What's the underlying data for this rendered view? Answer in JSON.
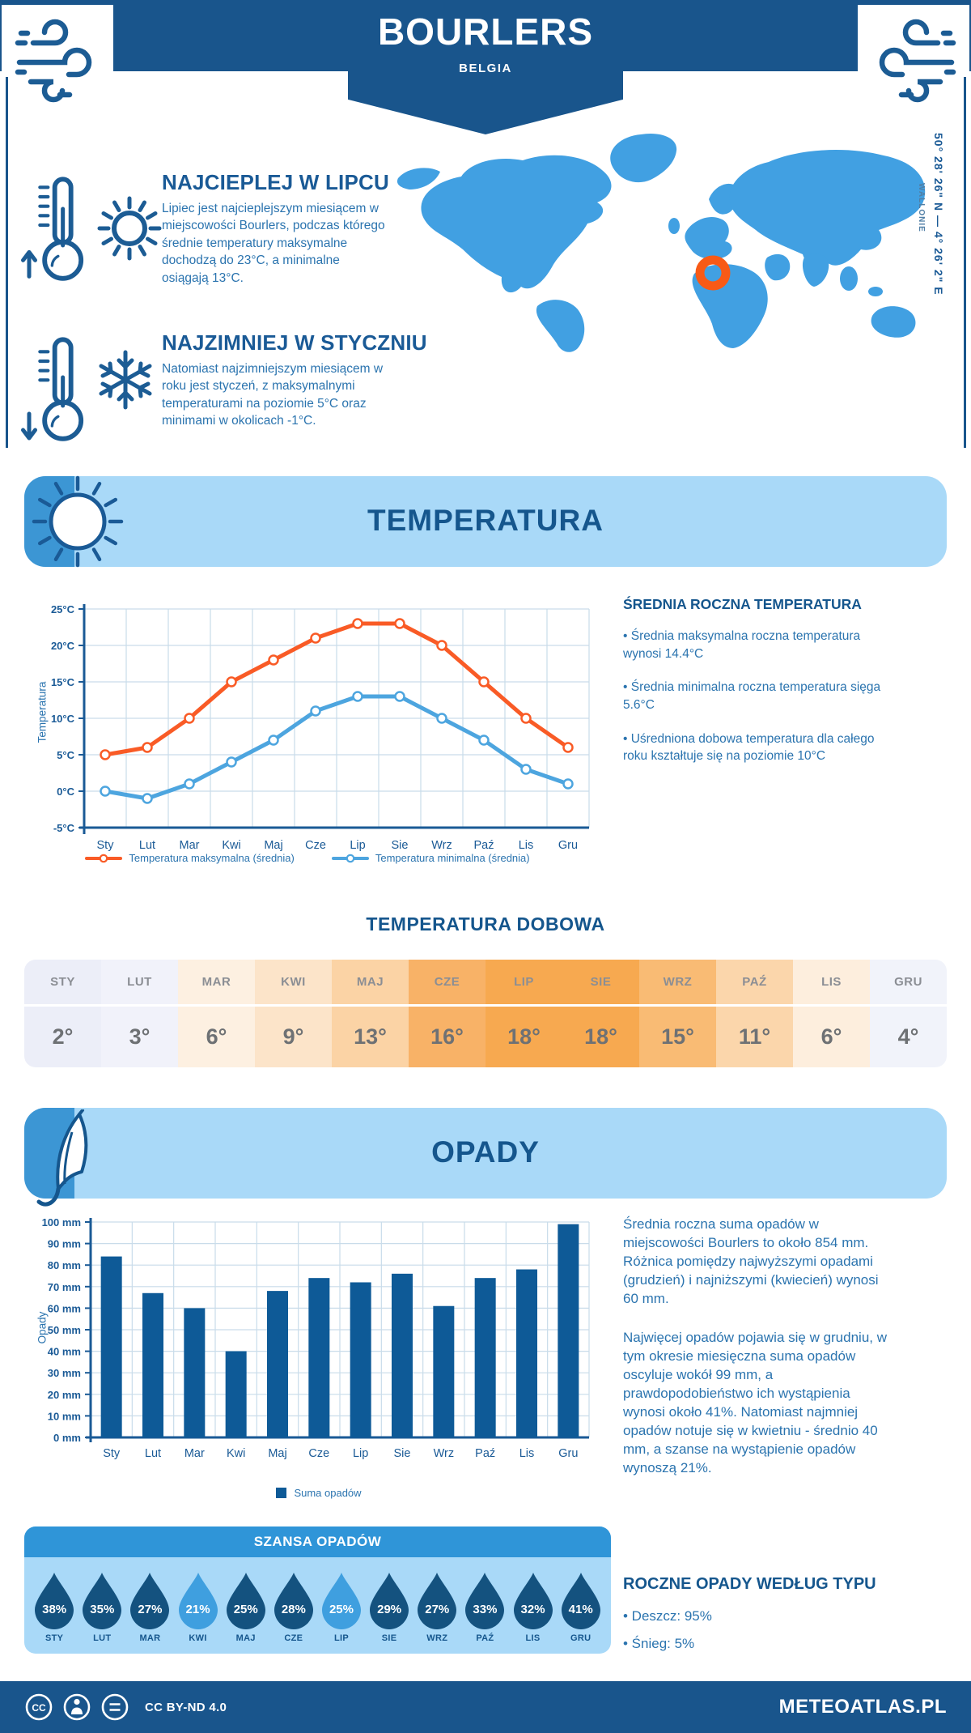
{
  "header": {
    "title": "BOURLERS",
    "subtitle": "BELGIA"
  },
  "warm": {
    "heading": "NAJCIEPLEJ W LIPCU",
    "text": "Lipiec jest najcieplejszym miesiącem w miejscowości Bourlers, podczas którego średnie temperatury maksymalne dochodzą do 23°C, a minimalne osiągają 13°C."
  },
  "cold": {
    "heading": "NAJZIMNIEJ W STYCZNIU",
    "text": "Natomiast najzimniejszym miesiącem w roku jest styczeń, z maksymalnymi temperaturami na poziomie 5°C oraz minimami w okolicach -1°C."
  },
  "map": {
    "coordinates": "50° 28' 26\" N — 4° 26' 2\" E",
    "region": "WALLONIE",
    "land_color": "#41A0E2",
    "marker_color": "#F85A16"
  },
  "temperature": {
    "banner": "TEMPERATURA",
    "summary_heading": "ŚREDNIA ROCZNA TEMPERATURA",
    "bullet1": "• Średnia maksymalna roczna temperatura wynosi 14.4°C",
    "bullet2": "• Średnia minimalna roczna temperatura sięga 5.6°C",
    "bullet3": "• Uśredniona dobowa temperatura dla całego roku kształtuje się na poziomie 10°C",
    "daily_heading": "TEMPERATURA DOBOWA"
  },
  "daily_table": {
    "months": [
      "STY",
      "LUT",
      "MAR",
      "KWI",
      "MAJ",
      "CZE",
      "LIP",
      "SIE",
      "WRZ",
      "PAŹ",
      "LIS",
      "GRU"
    ],
    "values": [
      "2°",
      "3°",
      "6°",
      "9°",
      "13°",
      "16°",
      "18°",
      "18°",
      "15°",
      "11°",
      "6°",
      "4°"
    ],
    "colors": [
      "#ECEEF8",
      "#F1F2FA",
      "#FDF0E1",
      "#FCE4C9",
      "#FBD3A5",
      "#F8B267",
      "#F7A950",
      "#F7A950",
      "#F9BB74",
      "#FBD6AB",
      "#FDEEDD",
      "#F1F3FA"
    ]
  },
  "precipitation": {
    "banner": "OPADY",
    "para1": "Średnia roczna suma opadów w miejscowości Bourlers to około 854 mm. Różnica pomiędzy najwyższymi opadami (grudzień) i najniższymi (kwiecień) wynosi 60 mm.",
    "para2": "Najwięcej opadów pojawia się w grudniu, w tym okresie miesięczna suma opadów oscyluje wokół 99 mm, a prawdopodobieństwo ich wystąpienia wynosi około 41%. Natomiast najmniej opadów notuje się w kwietniu - średnio 40 mm, a szanse na wystąpienie opadów wynoszą 21%.",
    "chance_heading": "SZANSA OPADÓW",
    "chance": [
      {
        "month": "STY",
        "pct": "38%",
        "color": "#14527F"
      },
      {
        "month": "LUT",
        "pct": "35%",
        "color": "#14527F"
      },
      {
        "month": "MAR",
        "pct": "27%",
        "color": "#14527F"
      },
      {
        "month": "KWI",
        "pct": "21%",
        "color": "#3F9FDF"
      },
      {
        "month": "MAJ",
        "pct": "25%",
        "color": "#14527F"
      },
      {
        "month": "CZE",
        "pct": "28%",
        "color": "#14527F"
      },
      {
        "month": "LIP",
        "pct": "25%",
        "color": "#3F9FDF"
      },
      {
        "month": "SIE",
        "pct": "29%",
        "color": "#14527F"
      },
      {
        "month": "WRZ",
        "pct": "27%",
        "color": "#14527F"
      },
      {
        "month": "PAŹ",
        "pct": "33%",
        "color": "#14527F"
      },
      {
        "month": "LIS",
        "pct": "32%",
        "color": "#14527F"
      },
      {
        "month": "GRU",
        "pct": "41%",
        "color": "#14527F"
      }
    ],
    "type_heading": "ROCZNE OPADY WEDŁUG TYPU",
    "type_bullet1": "• Deszcz: 95%",
    "type_bullet2": "• Śnieg: 5%"
  },
  "chart_data": [
    {
      "type": "line",
      "categories": [
        "Sty",
        "Lut",
        "Mar",
        "Kwi",
        "Maj",
        "Cze",
        "Lip",
        "Sie",
        "Wrz",
        "Paź",
        "Lis",
        "Gru"
      ],
      "ylabel": "Temperatura",
      "ylim": [
        -5,
        25
      ],
      "ytick_step": 5,
      "ytick_suffix": "°C",
      "grid": true,
      "legend_position": "bottom",
      "series": [
        {
          "name": "Temperatura maksymalna (średnia)",
          "color": "#F95B26",
          "values": [
            5,
            6,
            10,
            15,
            18,
            21,
            23,
            23,
            20,
            15,
            10,
            6
          ]
        },
        {
          "name": "Temperatura minimalna (średnia)",
          "color": "#4DA5DF",
          "values": [
            0,
            -1,
            1,
            4,
            7,
            11,
            13,
            13,
            10,
            7,
            3,
            1
          ]
        }
      ]
    },
    {
      "type": "bar",
      "categories": [
        "Sty",
        "Lut",
        "Mar",
        "Kwi",
        "Maj",
        "Cze",
        "Lip",
        "Sie",
        "Wrz",
        "Paź",
        "Lis",
        "Gru"
      ],
      "ylabel": "Opady",
      "ylim": [
        0,
        100
      ],
      "ytick_step": 10,
      "ytick_suffix": " mm",
      "grid": true,
      "legend_position": "bottom",
      "series": [
        {
          "name": "Suma opadów",
          "color": "#0E5A97",
          "values": [
            84,
            67,
            60,
            40,
            68,
            74,
            72,
            76,
            61,
            74,
            78,
            99
          ]
        }
      ]
    }
  ],
  "footer": {
    "license": "CC BY-ND 4.0",
    "brand": "METEOATLAS.PL"
  }
}
